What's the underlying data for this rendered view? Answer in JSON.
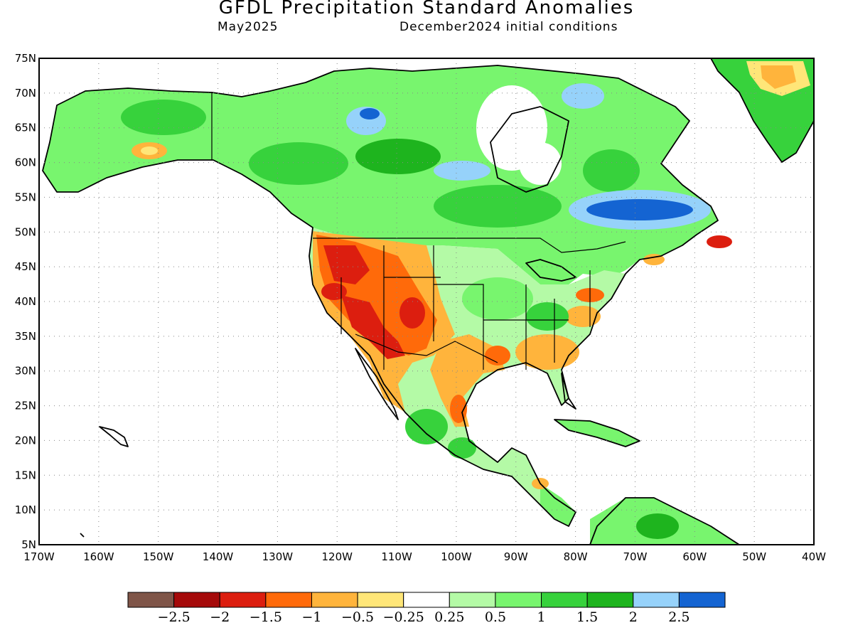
{
  "header": {
    "title": "GFDL Precipitation Standard Anomalies",
    "valid_month": "May2025",
    "init_conditions": "December2024 initial conditions"
  },
  "map": {
    "lon_range": [
      -170,
      -40
    ],
    "lat_range": [
      5,
      75
    ],
    "lat_ticks": [
      "75N",
      "70N",
      "65N",
      "60N",
      "55N",
      "50N",
      "45N",
      "40N",
      "35N",
      "30N",
      "25N",
      "20N",
      "15N",
      "10N",
      "5N"
    ],
    "lon_ticks": [
      "170W",
      "160W",
      "150W",
      "140W",
      "130W",
      "120W",
      "110W",
      "100W",
      "90W",
      "80W",
      "70W",
      "60W",
      "50W",
      "40W"
    ],
    "grid": "dotted"
  },
  "colorbar": {
    "colors": [
      "#7f5548",
      "#a50a0a",
      "#dc1e0f",
      "#ff6a0a",
      "#ffb43c",
      "#ffe678",
      "#ffffff",
      "#b4faa6",
      "#78f56e",
      "#37d23c",
      "#1eb41e",
      "#96d2fa",
      "#1464d2"
    ],
    "labels": [
      "−2.5",
      "−2",
      "−1.5",
      "−1",
      "−0.5",
      "−0.25",
      "0.25",
      "0.5",
      "1",
      "1.5",
      "2",
      "2.5"
    ]
  },
  "regions": [
    {
      "name": "west-us-dry",
      "cls": "-1",
      "lon": -118,
      "lat": 41,
      "rx": 9,
      "ry": 6
    },
    {
      "name": "southwest-dry",
      "cls": "-1.5",
      "lon": -112,
      "lat": 36,
      "rx": 6,
      "ry": 4
    },
    {
      "name": "labrador-wet",
      "cls": "2.5",
      "lon": -65,
      "lat": 52.5,
      "rx": 8,
      "ry": 2
    },
    {
      "name": "hudson-west-wet",
      "cls": "2",
      "lon": -112,
      "lat": 65,
      "rx": 3,
      "ry": 2
    }
  ]
}
